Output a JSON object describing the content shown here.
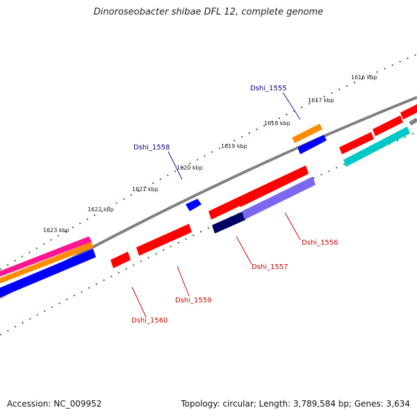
{
  "title": "Dinoroseobacter shibae DFL 12, complete genome",
  "footer": {
    "accession": "Accession: NC_009952",
    "topology": "Topology: circular; Length: 3,789,584 bp; Genes: 3,634"
  },
  "colors": {
    "forward_gene": "#ff0000",
    "reverse_gene": "#0000ff",
    "backbone": "#808080",
    "tick": "#1a7a1a",
    "label_blue": "#000080",
    "label_red": "#cc0000",
    "orange": "#ff8c00",
    "magenta": "#ff1493",
    "cyan": "#00c8c8",
    "navy": "#000066",
    "lavender": "#7b68ee"
  },
  "kbp_labels": [
    "1616 kbp",
    "1617 kbp",
    "1618 kbp",
    "1619 kbp",
    "1620 kbp",
    "1621 kbp",
    "1622 kbp",
    "1623 kbp"
  ],
  "gene_labels": {
    "top": [
      "Dshi_1555",
      "Dshi_1558"
    ],
    "bottom": [
      "Dshi_1556",
      "Dshi_1557",
      "Dshi_1559",
      "Dshi_1560"
    ]
  }
}
